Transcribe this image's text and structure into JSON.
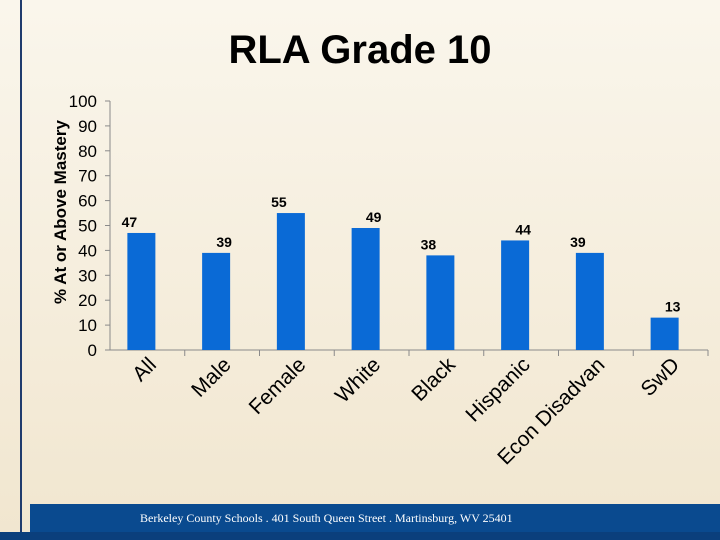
{
  "title": "RLA Grade 10",
  "footer": "Berkeley County Schools . 401 South Queen Street . Martinsburg, WV  25401",
  "colors": {
    "bar": "#0a6ad6",
    "axis": "#8a8a8a",
    "footer_bg": "#0a4a8f"
  },
  "chart_data": {
    "type": "bar",
    "title": "RLA Grade 10",
    "xlabel": "",
    "ylabel": "% At or Above Mastery",
    "ylim": [
      0,
      100
    ],
    "yticks": [
      "0",
      "10",
      "20",
      "30",
      "40",
      "50",
      "60",
      "70",
      "80",
      "90",
      "100"
    ],
    "categories": [
      "All",
      "Male",
      "Female",
      "White",
      "Black",
      "Hispanic",
      "Econ Disadvan",
      "SwD"
    ],
    "values": [
      47,
      39,
      55,
      49,
      38,
      44,
      39,
      13
    ],
    "data_labels": [
      "47",
      "39",
      "55",
      "49",
      "38",
      "44",
      "39",
      "13"
    ],
    "grid": false,
    "legend": "none"
  }
}
